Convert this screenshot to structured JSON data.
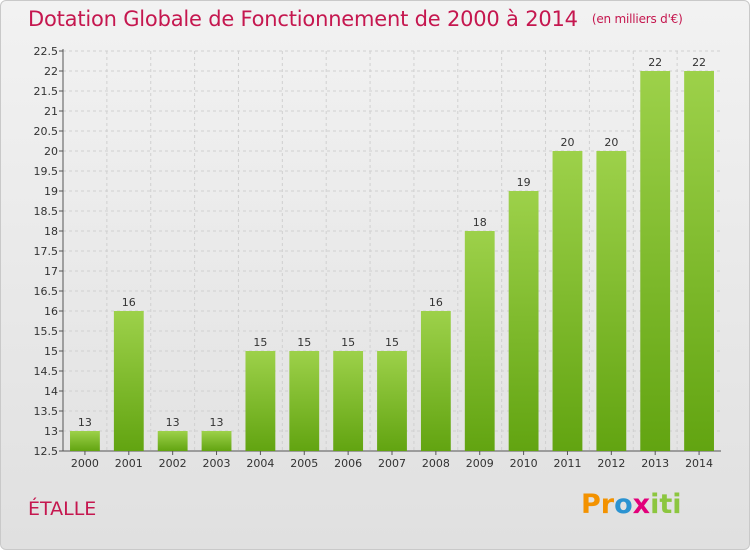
{
  "title": "Dotation Globale de Fonctionnement de 2000 à 2014",
  "subtitle": "(en milliers d'€)",
  "commune": "ÉTALLE",
  "logo": "Proxiti",
  "colors": {
    "bar_light": "#9dd14a",
    "bar_dark": "#62a411",
    "title": "#c5174f",
    "grid": "#d0d0d0"
  },
  "chart_data": {
    "type": "bar",
    "categories": [
      "2000",
      "2001",
      "2002",
      "2003",
      "2004",
      "2005",
      "2006",
      "2007",
      "2008",
      "2009",
      "2010",
      "2011",
      "2012",
      "2013",
      "2014"
    ],
    "values": [
      13,
      16,
      13,
      13,
      15,
      15,
      15,
      15,
      16,
      18,
      19,
      20,
      20,
      22,
      22
    ],
    "data_labels": [
      "13",
      "16",
      "13",
      "13",
      "15",
      "15",
      "15",
      "15",
      "16",
      "18",
      "19",
      "20",
      "20",
      "22",
      "22"
    ],
    "ylim": [
      12.5,
      22.5
    ],
    "yticks": [
      "12.5",
      "13",
      "13.5",
      "14",
      "14.5",
      "15",
      "15.5",
      "16",
      "16.5",
      "17",
      "17.5",
      "18",
      "18.5",
      "19",
      "19.5",
      "20",
      "20.5",
      "21",
      "21.5",
      "22",
      "22.5"
    ],
    "grid": true,
    "xlabel": "",
    "ylabel": ""
  }
}
